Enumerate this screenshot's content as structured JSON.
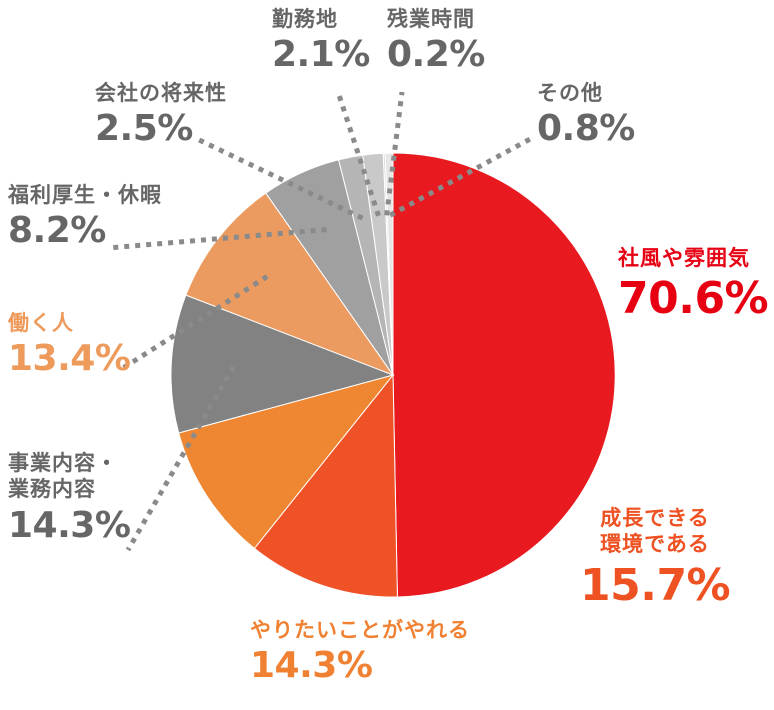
{
  "chart_data": {
    "type": "pie",
    "unit": "%",
    "slices": [
      {
        "key": "s1",
        "label": "社風や雰囲気",
        "value": 70.6,
        "display": "70.6%",
        "color": "#e8191f"
      },
      {
        "key": "s2",
        "label": "成長できる環境である",
        "label_lines": [
          "成長できる",
          "環境である"
        ],
        "value": 15.7,
        "display": "15.7%",
        "color": "#ef5226"
      },
      {
        "key": "s3",
        "label": "やりたいことがやれる",
        "value": 14.3,
        "display": "14.3%",
        "color": "#ee8632"
      },
      {
        "key": "s4",
        "label": "事業内容・業務内容",
        "label_lines": [
          "事業内容・",
          "業務内容"
        ],
        "value": 14.3,
        "display": "14.3%",
        "color": "#828282"
      },
      {
        "key": "s5",
        "label": "働く人",
        "value": 13.4,
        "display": "13.4%",
        "color": "#eb9b60"
      },
      {
        "key": "s6",
        "label": "福利厚生・休暇",
        "value": 8.2,
        "display": "8.2%",
        "color": "#a0a0a0"
      },
      {
        "key": "s7",
        "label": "会社の将来性",
        "value": 2.5,
        "display": "2.5%",
        "color": "#b5b5b5"
      },
      {
        "key": "s8",
        "label": "勤務地",
        "value": 2.1,
        "display": "2.1%",
        "color": "#c9c9c9"
      },
      {
        "key": "s9",
        "label": "残業時間",
        "value": 0.2,
        "display": "0.2%",
        "color": "#dadada"
      },
      {
        "key": "s10",
        "label": "その他",
        "value": 0.8,
        "display": "0.8%",
        "color": "#e6e6e6"
      }
    ]
  },
  "colors": {
    "leader_line": "#8a8a8a",
    "label_gray": "#666666",
    "label_red": "#e60012",
    "label_orange": "#ef5222",
    "label_amber": "#f08132",
    "label_peach": "#ed9a5b"
  }
}
